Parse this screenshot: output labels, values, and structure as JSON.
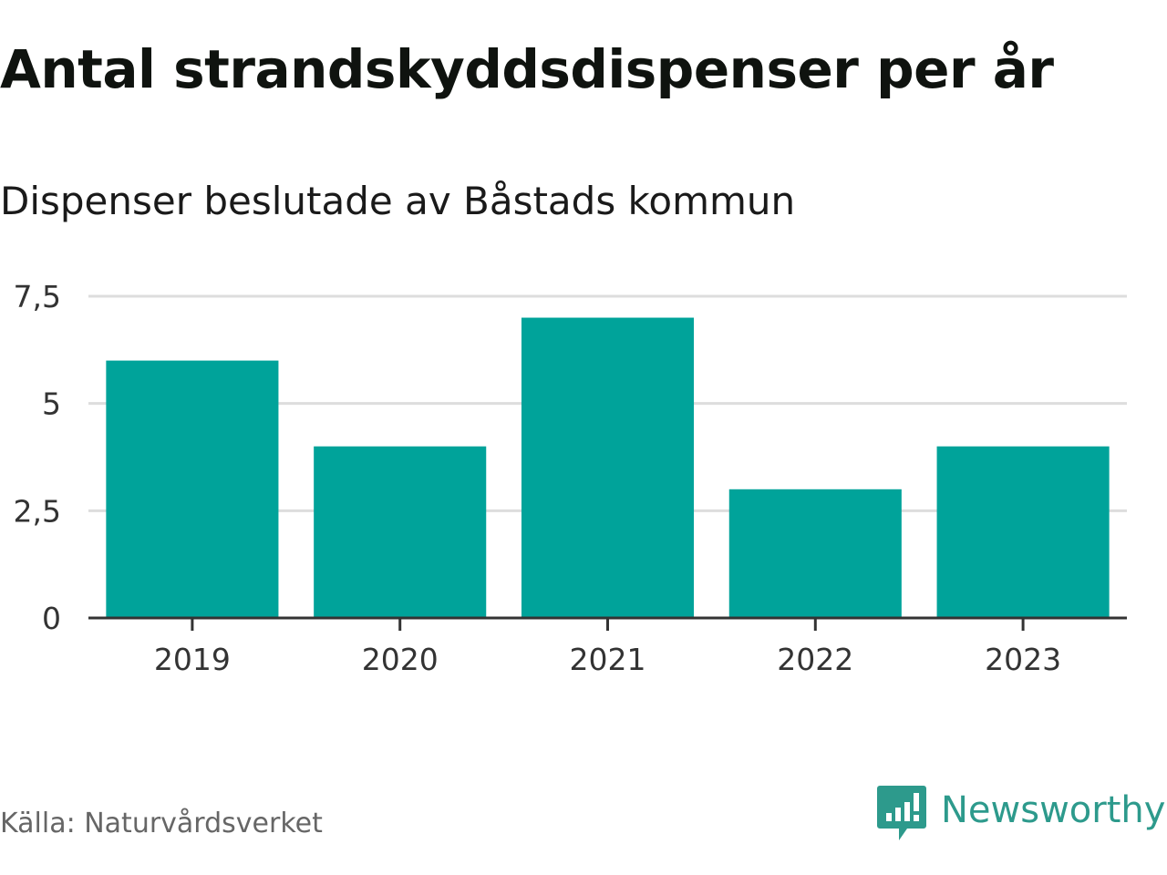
{
  "header": {
    "title": "Antal strandskyddsdispenser per år",
    "subtitle": "Dispenser beslutade av Båstads kommun"
  },
  "footer": {
    "source": "Källa: Naturvårdsverket",
    "brand": "Newsworthy"
  },
  "colors": {
    "bar": "#00a39a",
    "grid": "#dddddd",
    "axis": "#333333",
    "brand": "#2d9a8c"
  },
  "chart_data": {
    "type": "bar",
    "title": "Antal strandskyddsdispenser per år",
    "subtitle": "Dispenser beslutade av Båstads kommun",
    "xlabel": "",
    "ylabel": "",
    "categories": [
      "2019",
      "2020",
      "2021",
      "2022",
      "2023"
    ],
    "values": [
      6,
      4,
      7,
      3,
      4
    ],
    "ylim": [
      0,
      7.5
    ],
    "yticks": [
      0,
      2.5,
      5,
      7.5
    ],
    "ytick_labels": [
      "0",
      "2,5",
      "5",
      "7,5"
    ],
    "grid": true,
    "legend": "none"
  }
}
